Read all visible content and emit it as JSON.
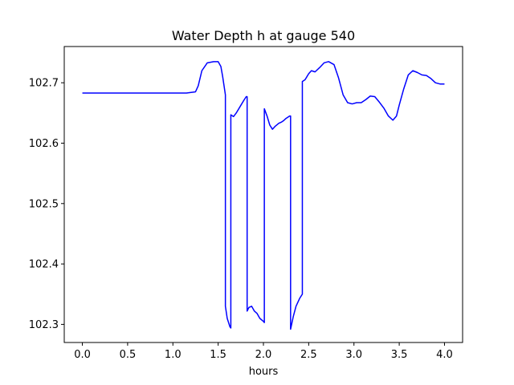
{
  "chart_data": {
    "type": "line",
    "title": "Water Depth h at gauge 540",
    "xlabel": "hours",
    "ylabel": "",
    "xlim": [
      -0.2,
      4.2
    ],
    "ylim": [
      102.27,
      102.76
    ],
    "xticks": [
      0.0,
      0.5,
      1.0,
      1.5,
      2.0,
      2.5,
      3.0,
      3.5,
      4.0
    ],
    "xtick_labels": [
      "0.0",
      "0.5",
      "1.0",
      "1.5",
      "2.0",
      "2.5",
      "3.0",
      "3.5",
      "4.0"
    ],
    "yticks": [
      102.3,
      102.4,
      102.5,
      102.6,
      102.7
    ],
    "ytick_labels": [
      "102.3",
      "102.4",
      "102.5",
      "102.6",
      "102.7"
    ],
    "grid": false,
    "series": [
      {
        "color": "#0000ff",
        "x": [
          0.0,
          0.5,
          1.0,
          1.15,
          1.25,
          1.28,
          1.32,
          1.38,
          1.45,
          1.5,
          1.53,
          1.55,
          1.57,
          1.58,
          1.58,
          1.6,
          1.63,
          1.64,
          1.64,
          1.67,
          1.7,
          1.74,
          1.78,
          1.81,
          1.82,
          1.82,
          1.84,
          1.87,
          1.9,
          1.93,
          1.96,
          2.0,
          2.01,
          2.01,
          2.04,
          2.07,
          2.1,
          2.13,
          2.17,
          2.2,
          2.22,
          2.25,
          2.29,
          2.3,
          2.3,
          2.33,
          2.36,
          2.4,
          2.43,
          2.43,
          2.46,
          2.5,
          2.53,
          2.57,
          2.62,
          2.67,
          2.72,
          2.78,
          2.83,
          2.88,
          2.93,
          2.98,
          3.03,
          3.08,
          3.13,
          3.18,
          3.23,
          3.28,
          3.33,
          3.38,
          3.43,
          3.47,
          3.5,
          3.55,
          3.6,
          3.65,
          3.7,
          3.75,
          3.8,
          3.85,
          3.9,
          3.95,
          4.0
        ],
        "y": [
          102.683,
          102.683,
          102.683,
          102.683,
          102.685,
          102.695,
          102.72,
          102.733,
          102.735,
          102.735,
          102.727,
          102.71,
          102.69,
          102.68,
          102.33,
          102.31,
          102.296,
          102.294,
          102.647,
          102.644,
          102.65,
          102.66,
          102.67,
          102.677,
          102.677,
          102.322,
          102.328,
          102.33,
          102.322,
          102.318,
          102.31,
          102.305,
          102.303,
          102.657,
          102.645,
          102.63,
          102.623,
          102.628,
          102.633,
          102.635,
          102.637,
          102.641,
          102.645,
          102.645,
          102.292,
          102.313,
          102.33,
          102.343,
          102.35,
          102.702,
          102.705,
          102.715,
          102.72,
          102.718,
          102.725,
          102.733,
          102.735,
          102.73,
          102.708,
          102.68,
          102.667,
          102.665,
          102.667,
          102.667,
          102.672,
          102.678,
          102.677,
          102.668,
          102.658,
          102.645,
          102.638,
          102.645,
          102.663,
          102.69,
          102.713,
          102.72,
          102.717,
          102.713,
          102.712,
          102.707,
          102.7,
          102.698,
          102.698
        ]
      }
    ]
  }
}
